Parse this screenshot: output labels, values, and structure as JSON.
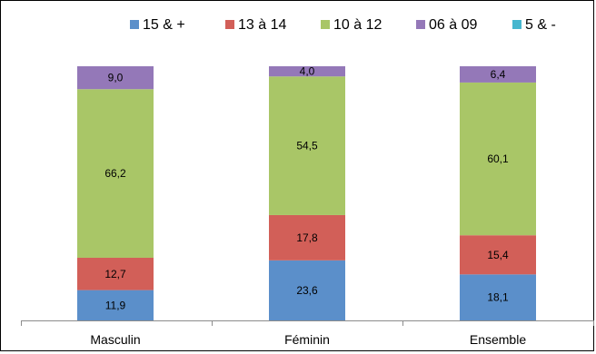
{
  "chart_data": {
    "type": "bar",
    "stacked": true,
    "categories": [
      "Masculin",
      "Féminin",
      "Ensemble"
    ],
    "series": [
      {
        "name": "15 & +",
        "color": "#5b8fca",
        "values": [
          11.9,
          23.6,
          18.1
        ],
        "labels": [
          "11,9",
          "23,6",
          "18,1"
        ]
      },
      {
        "name": "13 à 14",
        "color": "#d25f58",
        "values": [
          12.7,
          17.8,
          15.4
        ],
        "labels": [
          "12,7",
          "17,8",
          "15,4"
        ]
      },
      {
        "name": "10 à 12",
        "color": "#a9c667",
        "values": [
          66.2,
          54.5,
          60.1
        ],
        "labels": [
          "66,2",
          "54,5",
          "60,1"
        ]
      },
      {
        "name": "06 à 09",
        "color": "#9478b8",
        "values": [
          9.0,
          4.0,
          6.4
        ],
        "labels": [
          "9,0",
          "4,0",
          "6,4"
        ]
      },
      {
        "name": "5 & -",
        "color": "#47b7cf",
        "values": [
          0,
          0,
          0
        ],
        "labels": [
          "",
          "",
          ""
        ]
      }
    ],
    "ylim": [
      0,
      100
    ],
    "grid": false,
    "legend_position": "top"
  }
}
